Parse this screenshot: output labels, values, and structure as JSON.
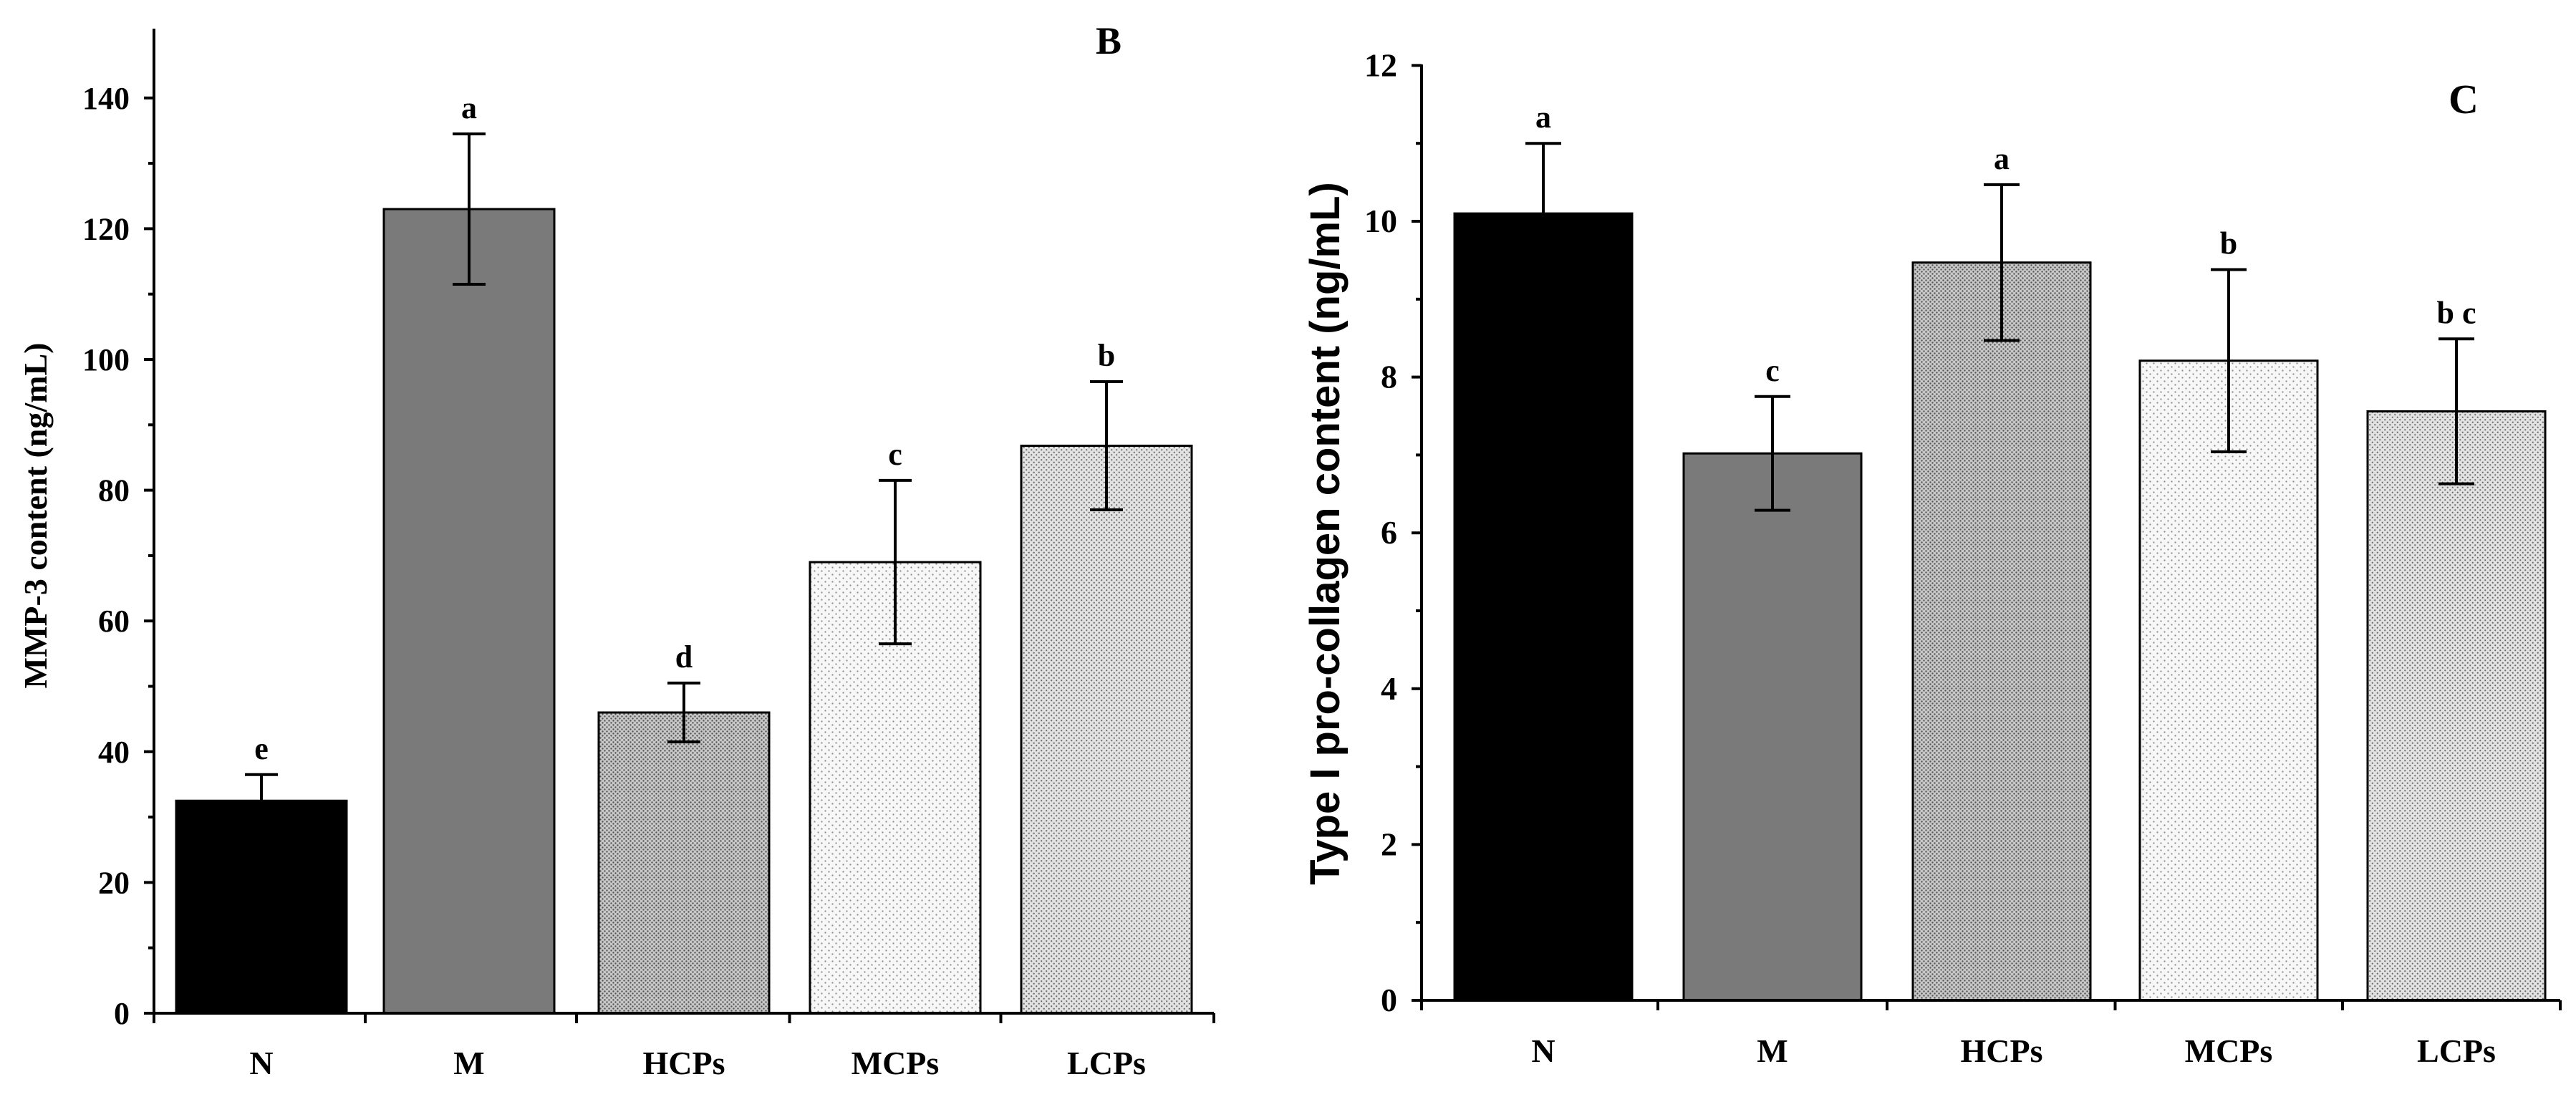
{
  "chart_data": [
    {
      "type": "bar",
      "panel": "B",
      "title": "",
      "xlabel": "",
      "ylabel": "MMP-3 content (ng/mL)",
      "ylim": [
        0,
        150
      ],
      "yticks": [
        0,
        20,
        40,
        60,
        80,
        100,
        120,
        140
      ],
      "yticklabels": [
        "0",
        "20",
        "40",
        "60",
        "80",
        "100",
        "120",
        "140"
      ],
      "categories": [
        "N",
        "M",
        "HCPs",
        "MCPs",
        "LCPs"
      ],
      "values": [
        32.5,
        123,
        46,
        69,
        86.8
      ],
      "errors": [
        4,
        11.5,
        4.5,
        12.5,
        9.8
      ],
      "significance": [
        "e",
        "a",
        "d",
        "c",
        "b"
      ],
      "fills": [
        "#000000",
        "#7a7a7a",
        "pattern-dense",
        "pattern-light",
        "pattern-medium"
      ],
      "legend": "none"
    },
    {
      "type": "bar",
      "panel": "C",
      "title": "",
      "xlabel": "",
      "ylabel": "Type I pro-collagen content (ng/mL)",
      "ylim": [
        0,
        12
      ],
      "yticks": [
        0,
        2,
        4,
        6,
        8,
        10,
        12
      ],
      "yticklabels": [
        "0",
        "2",
        "4",
        "6",
        "8",
        "10",
        "12"
      ],
      "categories": [
        "N",
        "M",
        "HCPs",
        "MCPs",
        "LCPs"
      ],
      "values": [
        10.1,
        7.02,
        9.47,
        8.21,
        7.56
      ],
      "errors": [
        0.9,
        0.73,
        1.0,
        1.17,
        0.93
      ],
      "significance": [
        "a",
        "c",
        "a",
        "b",
        "b c"
      ],
      "fills": [
        "#000000",
        "#7a7a7a",
        "pattern-dense",
        "pattern-light",
        "pattern-medium"
      ],
      "legend": "none"
    }
  ]
}
